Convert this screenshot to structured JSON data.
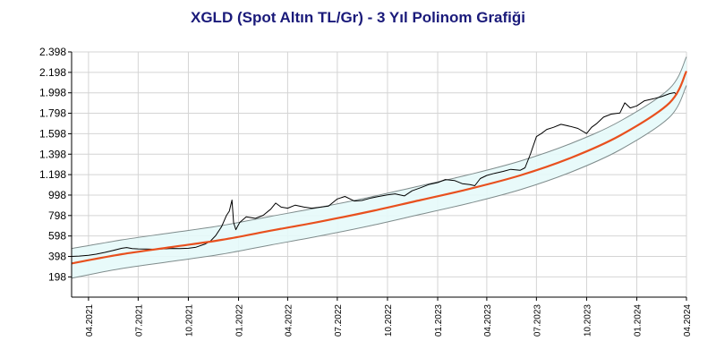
{
  "chart_data": {
    "type": "line",
    "title": "XGLD (Spot Altın TL/Gr) - 3 Yıl Polinom Grafiği",
    "xlabel": "",
    "ylabel": "",
    "x_tick_labels": [
      "04.2021",
      "07.2021",
      "10.2021",
      "01.2022",
      "04.2022",
      "07.2022",
      "10.2022",
      "01.2023",
      "04.2023",
      "07.2023",
      "10.2023",
      "01.2024",
      "04.2024"
    ],
    "y_tick_labels": [
      "198",
      "398",
      "598",
      "798",
      "998",
      "1.198",
      "1.398",
      "1.598",
      "1.798",
      "1.998",
      "2.198",
      "2.398"
    ],
    "ylim": [
      0,
      2398
    ],
    "xlim": [
      "2021-03-01",
      "2024-04-01"
    ],
    "grid": true,
    "colors": {
      "price": "#000000",
      "trend": "#e8501e",
      "band_edge": "#7f8c8c",
      "band_fill": "#e6fafa",
      "grid": "#d4d4d4",
      "title": "#1a1a7a"
    },
    "series": [
      {
        "points": [
          [
            "2021-03-01",
            398
          ],
          [
            "2021-03-15",
            402
          ],
          [
            "2021-04-01",
            410
          ],
          [
            "2021-04-15",
            420
          ],
          [
            "2021-05-01",
            438
          ],
          [
            "2021-05-15",
            455
          ],
          [
            "2021-06-01",
            478
          ],
          [
            "2021-06-10",
            485
          ],
          [
            "2021-06-20",
            475
          ],
          [
            "2021-07-01",
            472
          ],
          [
            "2021-07-15",
            470
          ],
          [
            "2021-08-01",
            468
          ],
          [
            "2021-08-15",
            472
          ],
          [
            "2021-09-01",
            476
          ],
          [
            "2021-09-15",
            474
          ],
          [
            "2021-10-01",
            478
          ],
          [
            "2021-10-15",
            488
          ],
          [
            "2021-11-01",
            520
          ],
          [
            "2021-11-10",
            545
          ],
          [
            "2021-11-20",
            600
          ],
          [
            "2021-12-01",
            690
          ],
          [
            "2021-12-10",
            800
          ],
          [
            "2021-12-15",
            840
          ],
          [
            "2021-12-20",
            950
          ],
          [
            "2021-12-23",
            730
          ],
          [
            "2021-12-27",
            660
          ],
          [
            "2022-01-03",
            730
          ],
          [
            "2022-01-15",
            785
          ],
          [
            "2022-02-01",
            770
          ],
          [
            "2022-02-15",
            800
          ],
          [
            "2022-03-01",
            860
          ],
          [
            "2022-03-10",
            920
          ],
          [
            "2022-03-20",
            880
          ],
          [
            "2022-04-01",
            870
          ],
          [
            "2022-04-15",
            900
          ],
          [
            "2022-05-01",
            880
          ],
          [
            "2022-05-15",
            870
          ],
          [
            "2022-06-01",
            880
          ],
          [
            "2022-06-15",
            890
          ],
          [
            "2022-07-01",
            960
          ],
          [
            "2022-07-15",
            985
          ],
          [
            "2022-08-01",
            940
          ],
          [
            "2022-08-15",
            945
          ],
          [
            "2022-09-01",
            970
          ],
          [
            "2022-09-15",
            985
          ],
          [
            "2022-10-01",
            1000
          ],
          [
            "2022-10-15",
            1010
          ],
          [
            "2022-11-01",
            990
          ],
          [
            "2022-11-15",
            1040
          ],
          [
            "2022-12-01",
            1070
          ],
          [
            "2022-12-15",
            1100
          ],
          [
            "2023-01-01",
            1120
          ],
          [
            "2023-01-15",
            1150
          ],
          [
            "2023-02-01",
            1140
          ],
          [
            "2023-02-15",
            1110
          ],
          [
            "2023-03-01",
            1100
          ],
          [
            "2023-03-10",
            1090
          ],
          [
            "2023-03-20",
            1160
          ],
          [
            "2023-04-01",
            1190
          ],
          [
            "2023-04-15",
            1210
          ],
          [
            "2023-05-01",
            1230
          ],
          [
            "2023-05-15",
            1250
          ],
          [
            "2023-06-01",
            1240
          ],
          [
            "2023-06-10",
            1265
          ],
          [
            "2023-06-20",
            1400
          ],
          [
            "2023-07-01",
            1570
          ],
          [
            "2023-07-10",
            1600
          ],
          [
            "2023-07-20",
            1640
          ],
          [
            "2023-08-01",
            1660
          ],
          [
            "2023-08-15",
            1690
          ],
          [
            "2023-09-01",
            1670
          ],
          [
            "2023-09-15",
            1650
          ],
          [
            "2023-10-01",
            1600
          ],
          [
            "2023-10-10",
            1660
          ],
          [
            "2023-10-20",
            1700
          ],
          [
            "2023-11-01",
            1760
          ],
          [
            "2023-11-15",
            1790
          ],
          [
            "2023-12-01",
            1800
          ],
          [
            "2023-12-10",
            1900
          ],
          [
            "2023-12-20",
            1850
          ],
          [
            "2024-01-01",
            1870
          ],
          [
            "2024-01-15",
            1920
          ],
          [
            "2024-02-01",
            1940
          ],
          [
            "2024-02-15",
            1960
          ],
          [
            "2024-03-01",
            1990
          ],
          [
            "2024-03-10",
            2000
          ],
          [
            "2024-03-15",
            1980
          ]
        ]
      },
      {
        "points": [
          [
            "2021-03-01",
            330
          ],
          [
            "2021-06-01",
            420
          ],
          [
            "2021-09-01",
            490
          ],
          [
            "2021-12-01",
            560
          ],
          [
            "2022-03-01",
            650
          ],
          [
            "2022-06-01",
            740
          ],
          [
            "2022-09-01",
            840
          ],
          [
            "2022-12-01",
            950
          ],
          [
            "2023-03-01",
            1060
          ],
          [
            "2023-06-01",
            1190
          ],
          [
            "2023-09-01",
            1360
          ],
          [
            "2023-12-01",
            1580
          ],
          [
            "2024-03-01",
            1900
          ],
          [
            "2024-04-01",
            2210
          ]
        ]
      },
      {
        "points": [
          [
            "2021-03-01",
            475
          ],
          [
            "2021-06-01",
            560
          ],
          [
            "2021-09-01",
            630
          ],
          [
            "2021-12-01",
            700
          ],
          [
            "2022-03-01",
            790
          ],
          [
            "2022-06-01",
            880
          ],
          [
            "2022-09-01",
            980
          ],
          [
            "2022-12-01",
            1090
          ],
          [
            "2023-03-01",
            1200
          ],
          [
            "2023-06-01",
            1330
          ],
          [
            "2023-09-01",
            1500
          ],
          [
            "2023-12-01",
            1720
          ],
          [
            "2024-03-01",
            2040
          ],
          [
            "2024-04-01",
            2350
          ]
        ]
      },
      {
        "points": [
          [
            "2021-03-01",
            185
          ],
          [
            "2021-06-01",
            280
          ],
          [
            "2021-09-01",
            350
          ],
          [
            "2021-12-01",
            420
          ],
          [
            "2022-03-01",
            510
          ],
          [
            "2022-06-01",
            600
          ],
          [
            "2022-09-01",
            700
          ],
          [
            "2022-12-01",
            810
          ],
          [
            "2023-03-01",
            920
          ],
          [
            "2023-06-01",
            1050
          ],
          [
            "2023-09-01",
            1220
          ],
          [
            "2023-12-01",
            1440
          ],
          [
            "2024-03-01",
            1760
          ],
          [
            "2024-04-01",
            2070
          ]
        ]
      }
    ]
  }
}
